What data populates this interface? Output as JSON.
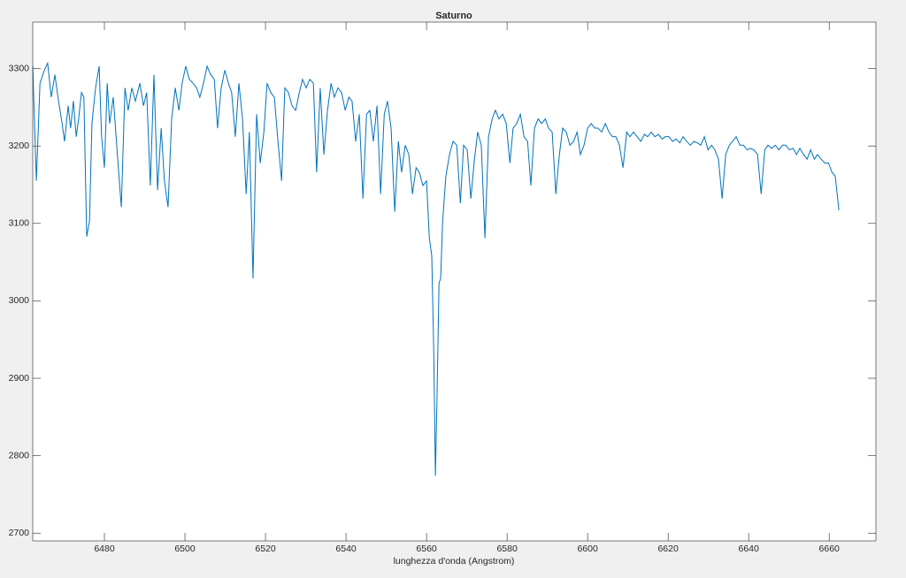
{
  "chart_data": {
    "type": "line",
    "title": "Saturno",
    "x_label": "lunghezza d'onda (Angstrom)",
    "xlim": [
      6462.2,
      6671.6
    ],
    "ylim": [
      2690,
      3360
    ],
    "xticks": [
      6480,
      6500,
      6520,
      6540,
      6560,
      6580,
      6600,
      6620,
      6640,
      6660
    ],
    "yticks": [
      2700,
      2800,
      2900,
      3000,
      3100,
      3200,
      3300
    ],
    "x": [
      6462.2,
      6463.1,
      6464.0,
      6465.1,
      6465.9,
      6466.8,
      6467.7,
      6468.6,
      6469.5,
      6470.1,
      6471.0,
      6471.6,
      6472.3,
      6473.0,
      6473.6,
      6474.3,
      6474.9,
      6475.6,
      6476.3,
      6476.9,
      6477.8,
      6478.7,
      6479.3,
      6480.0,
      6480.7,
      6481.3,
      6482.2,
      6483.3,
      6484.2,
      6485.1,
      6485.9,
      6486.8,
      6487.7,
      6488.8,
      6489.7,
      6490.5,
      6491.4,
      6492.3,
      6493.2,
      6494.1,
      6494.9,
      6495.8,
      6496.7,
      6497.6,
      6498.5,
      6499.3,
      6500.2,
      6501.1,
      6502.0,
      6502.9,
      6503.7,
      6504.6,
      6505.5,
      6506.4,
      6507.3,
      6508.1,
      6509.0,
      6509.9,
      6510.8,
      6511.6,
      6512.5,
      6513.4,
      6514.3,
      6515.2,
      6516.0,
      6516.9,
      6517.8,
      6518.7,
      6519.6,
      6520.4,
      6521.3,
      6522.2,
      6523.1,
      6524.0,
      6524.8,
      6525.7,
      6526.6,
      6527.5,
      6528.4,
      6529.2,
      6530.1,
      6531.0,
      6531.9,
      6532.7,
      6533.6,
      6534.5,
      6535.4,
      6536.3,
      6537.1,
      6538.0,
      6538.9,
      6539.8,
      6540.7,
      6541.5,
      6542.4,
      6543.3,
      6544.2,
      6545.1,
      6545.9,
      6546.8,
      6547.7,
      6548.6,
      6549.5,
      6550.3,
      6551.2,
      6552.1,
      6553.0,
      6553.8,
      6554.7,
      6555.6,
      6556.5,
      6557.4,
      6558.2,
      6559.1,
      6560.0,
      6560.7,
      6561.3,
      6561.8,
      6562.2,
      6562.6,
      6563.1,
      6563.5,
      6564.0,
      6564.8,
      6565.7,
      6566.6,
      6567.5,
      6568.4,
      6569.2,
      6570.1,
      6571.0,
      6571.9,
      6572.7,
      6573.6,
      6574.5,
      6575.4,
      6576.3,
      6577.1,
      6578.0,
      6578.9,
      6579.8,
      6580.7,
      6581.5,
      6582.4,
      6583.3,
      6584.2,
      6585.1,
      6585.9,
      6586.8,
      6587.7,
      6588.6,
      6589.5,
      6590.3,
      6591.2,
      6592.1,
      6593.0,
      6593.8,
      6594.7,
      6595.6,
      6596.5,
      6597.4,
      6598.2,
      6599.1,
      6600.0,
      6600.9,
      6601.8,
      6602.6,
      6603.5,
      6604.4,
      6605.3,
      6606.2,
      6607.0,
      6607.9,
      6608.8,
      6609.7,
      6610.5,
      6611.4,
      6612.3,
      6613.2,
      6614.1,
      6614.9,
      6615.8,
      6616.7,
      6617.6,
      6618.5,
      6619.3,
      6620.2,
      6621.1,
      6622.0,
      6622.9,
      6623.7,
      6624.6,
      6625.5,
      6626.4,
      6627.3,
      6628.1,
      6629.0,
      6629.9,
      6630.8,
      6631.6,
      6632.5,
      6633.4,
      6634.3,
      6635.2,
      6636.0,
      6636.9,
      6637.8,
      6638.7,
      6639.6,
      6640.4,
      6641.3,
      6642.2,
      6643.1,
      6644.0,
      6644.8,
      6645.7,
      6646.6,
      6647.5,
      6648.4,
      6649.2,
      6650.1,
      6651.0,
      6651.9,
      6652.7,
      6653.6,
      6654.5,
      6655.4,
      6656.3,
      6657.1,
      6658.0,
      6658.9,
      6659.8,
      6660.7,
      6661.5,
      6662.4
    ],
    "series": [
      {
        "color": "#0072bd",
        "values": [
          3303,
          3155,
          3281,
          3298,
          3307,
          3263,
          3292,
          3258,
          3229,
          3206,
          3252,
          3223,
          3258,
          3212,
          3235,
          3269,
          3263,
          3083,
          3103,
          3229,
          3275,
          3303,
          3212,
          3172,
          3281,
          3229,
          3263,
          3183,
          3121,
          3275,
          3246,
          3275,
          3258,
          3281,
          3252,
          3269,
          3149,
          3292,
          3143,
          3223,
          3155,
          3121,
          3235,
          3275,
          3246,
          3281,
          3303,
          3286,
          3281,
          3275,
          3263,
          3281,
          3303,
          3292,
          3286,
          3223,
          3275,
          3298,
          3281,
          3269,
          3212,
          3281,
          3235,
          3138,
          3218,
          3029,
          3241,
          3178,
          3218,
          3281,
          3269,
          3263,
          3206,
          3155,
          3275,
          3269,
          3252,
          3246,
          3269,
          3286,
          3275,
          3286,
          3281,
          3166,
          3275,
          3189,
          3246,
          3281,
          3263,
          3275,
          3269,
          3246,
          3263,
          3258,
          3206,
          3241,
          3132,
          3241,
          3246,
          3206,
          3252,
          3138,
          3241,
          3258,
          3223,
          3115,
          3206,
          3166,
          3201,
          3189,
          3138,
          3172,
          3166,
          3149,
          3155,
          3081,
          3058,
          2932,
          2774,
          2875,
          3023,
          3029,
          3103,
          3161,
          3189,
          3206,
          3201,
          3126,
          3201,
          3195,
          3132,
          3183,
          3218,
          3201,
          3081,
          3212,
          3235,
          3246,
          3235,
          3241,
          3229,
          3178,
          3223,
          3229,
          3241,
          3212,
          3206,
          3149,
          3223,
          3235,
          3229,
          3235,
          3223,
          3218,
          3138,
          3189,
          3223,
          3218,
          3201,
          3206,
          3218,
          3189,
          3201,
          3223,
          3229,
          3223,
          3223,
          3218,
          3229,
          3218,
          3212,
          3212,
          3201,
          3172,
          3218,
          3212,
          3218,
          3212,
          3206,
          3215,
          3212,
          3218,
          3212,
          3215,
          3209,
          3212,
          3212,
          3206,
          3209,
          3204,
          3212,
          3206,
          3201,
          3206,
          3204,
          3201,
          3212,
          3195,
          3201,
          3195,
          3183,
          3132,
          3189,
          3201,
          3206,
          3212,
          3201,
          3201,
          3195,
          3197,
          3195,
          3189,
          3138,
          3195,
          3201,
          3197,
          3201,
          3195,
          3201,
          3201,
          3195,
          3197,
          3189,
          3197,
          3189,
          3183,
          3195,
          3183,
          3189,
          3183,
          3178,
          3178,
          3166,
          3161,
          3117
        ]
      }
    ]
  }
}
